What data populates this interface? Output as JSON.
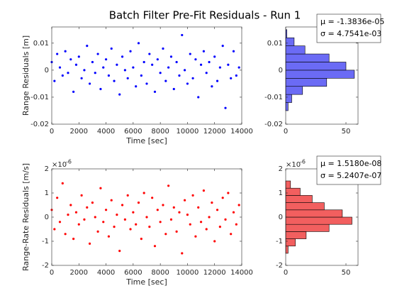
{
  "figure_title": "Batch Filter Pre-Fit Residuals - Run 1",
  "chart_data": [
    {
      "type": "scatter",
      "ylabel": "Range Residuals [m]",
      "xlabel": "Time [sec]",
      "color": "#0000ff",
      "xlim": [
        0,
        14000
      ],
      "xticks": [
        0,
        2000,
        4000,
        6000,
        8000,
        10000,
        12000,
        14000
      ],
      "ylim": [
        -0.02,
        0.016
      ],
      "yticks": [
        -0.02,
        -0.01,
        0,
        0.01
      ],
      "x": [
        0,
        200,
        400,
        600,
        800,
        1000,
        1200,
        1400,
        1600,
        1800,
        2000,
        2200,
        2400,
        2600,
        2800,
        3000,
        3200,
        3400,
        3600,
        3800,
        4000,
        4200,
        4400,
        4600,
        4800,
        5000,
        5200,
        5400,
        5600,
        5800,
        6000,
        6200,
        6400,
        6600,
        6800,
        7000,
        7200,
        7400,
        7600,
        7800,
        8000,
        8200,
        8400,
        8600,
        8800,
        9000,
        9200,
        9400,
        9600,
        9800,
        10000,
        10200,
        10400,
        10600,
        10800,
        11000,
        11200,
        11400,
        11600,
        11800,
        12000,
        12200,
        12400,
        12600,
        12800,
        13000,
        13200,
        13400,
        13600,
        13800
      ],
      "values": [
        0.003,
        -0.004,
        0.006,
        0.001,
        -0.002,
        0.007,
        -0.001,
        0.004,
        -0.008,
        0.002,
        0.005,
        -0.003,
        0,
        0.009,
        -0.005,
        0.003,
        -0.001,
        0.006,
        -0.007,
        0.001,
        0.004,
        -0.002,
        0.008,
        -0.004,
        0.002,
        -0.009,
        0.005,
        0,
        -0.003,
        0.007,
        0.001,
        -0.006,
        0.01,
        -0.002,
        0.003,
        -0.005,
        0.006,
        0.002,
        -0.008,
        0.004,
        -0.001,
        0.008,
        -0.004,
        0.001,
        0.005,
        -0.007,
        0.003,
        -0.002,
        0.013,
        0,
        -0.005,
        0.006,
        -0.003,
        0.004,
        -0.01,
        0.002,
        0.007,
        -0.001,
        0.003,
        -0.006,
        0.005,
        -0.004,
        0.001,
        0.009,
        -0.014,
        0.002,
        -0.003,
        0.007,
        -0.002,
        0.001
      ]
    },
    {
      "type": "histogram",
      "color": "#6b6bf5",
      "xlim": [
        0,
        60
      ],
      "xticks": [
        0,
        50
      ],
      "ylim": [
        -0.02,
        0.016
      ],
      "yticks": [
        -0.02,
        -0.01,
        0,
        0.01
      ],
      "bins": [
        -0.015,
        -0.012,
        -0.009,
        -0.006,
        -0.003,
        0,
        0.003,
        0.006,
        0.009,
        0.012,
        0.015
      ],
      "values": [
        2,
        5,
        14,
        34,
        57,
        50,
        36,
        16,
        7,
        1
      ],
      "legend": [
        "μ = -1.3836e-05",
        "σ = 4.7541e-03"
      ]
    },
    {
      "type": "scatter",
      "ylabel": "Range-Rate Residuals [m/s]",
      "xlabel": "Time [sec]",
      "color": "#ff0000",
      "xlim": [
        0,
        14000
      ],
      "xticks": [
        0,
        2000,
        4000,
        6000,
        8000,
        10000,
        12000,
        14000
      ],
      "ylim": [
        -2e-06,
        2e-06
      ],
      "yticks": [
        {
          "value": -2e-06,
          "label": "-2"
        },
        {
          "value": -1e-06,
          "label": "-1"
        },
        {
          "value": 0,
          "label": "0"
        },
        {
          "value": 1e-06,
          "label": "1"
        },
        {
          "value": 2e-06,
          "label": "2"
        }
      ],
      "yexponent": {
        "base": "×10",
        "power": "-6"
      },
      "x": [
        0,
        200,
        400,
        600,
        800,
        1000,
        1200,
        1400,
        1600,
        1800,
        2000,
        2200,
        2400,
        2600,
        2800,
        3000,
        3200,
        3400,
        3600,
        3800,
        4000,
        4200,
        4400,
        4600,
        4800,
        5000,
        5200,
        5400,
        5600,
        5800,
        6000,
        6200,
        6400,
        6600,
        6800,
        7000,
        7200,
        7400,
        7600,
        7800,
        8000,
        8200,
        8400,
        8600,
        8800,
        9000,
        9200,
        9400,
        9600,
        9800,
        10000,
        10200,
        10400,
        10600,
        10800,
        11000,
        11200,
        11400,
        11600,
        11800,
        12000,
        12200,
        12400,
        12600,
        12800,
        13000,
        13200,
        13400,
        13600,
        13800
      ],
      "values": [
        3e-07,
        -5e-07,
        8e-07,
        -2e-07,
        1.4e-06,
        -7e-07,
        1e-07,
        5e-07,
        -9e-07,
        2e-07,
        -3e-07,
        9e-07,
        -1e-07,
        4e-07,
        -1.1e-06,
        6e-07,
        0,
        -6e-07,
        1.2e-06,
        -2e-07,
        3e-07,
        -8e-07,
        7e-07,
        -4e-07,
        1e-07,
        -1.4e-06,
        5e-07,
        -1e-07,
        9e-07,
        -5e-07,
        2e-07,
        -3e-07,
        6e-07,
        -9e-07,
        1e-06,
        0,
        -4e-07,
        8e-07,
        -1.2e-06,
        3e-07,
        -2e-07,
        5e-07,
        -7e-07,
        1.3e-06,
        -1e-07,
        4e-07,
        -6e-07,
        2e-07,
        -1.5e-06,
        7e-07,
        1e-07,
        -3e-07,
        9e-07,
        -8e-07,
        4e-07,
        -2e-07,
        1.1e-06,
        -5e-07,
        0,
        6e-07,
        -1e-06,
        3e-07,
        -4e-07,
        8e-07,
        -1e-07,
        1e-06,
        -7e-07,
        2e-07,
        -3e-07,
        5e-07
      ]
    },
    {
      "type": "histogram",
      "color": "#f25f5f",
      "xlim": [
        0,
        60
      ],
      "xticks": [
        0,
        50
      ],
      "ylim": [
        -2e-06,
        2e-06
      ],
      "yticks": [
        {
          "value": -2e-06,
          "label": "-2"
        },
        {
          "value": -1e-06,
          "label": "-1"
        },
        {
          "value": 0,
          "label": "0"
        },
        {
          "value": 1e-06,
          "label": "1"
        },
        {
          "value": 2e-06,
          "label": "2"
        }
      ],
      "yexponent": {
        "base": "×10",
        "power": "-6"
      },
      "bins": [
        -1.5e-06,
        -1.2e-06,
        -9e-07,
        -6e-07,
        -3e-07,
        0,
        3e-07,
        6e-07,
        9e-07,
        1.2e-06,
        1.5e-06
      ],
      "values": [
        2,
        8,
        17,
        36,
        55,
        47,
        32,
        22,
        12,
        4
      ],
      "legend": [
        "μ = 1.5180e-08",
        "σ = 5.2407e-07"
      ]
    }
  ]
}
